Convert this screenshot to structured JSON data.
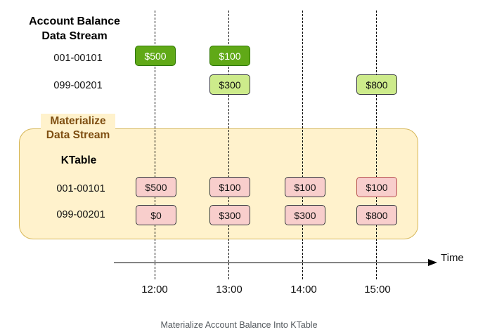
{
  "stream": {
    "title": "Account Balance Data Stream",
    "accounts": [
      "001-00101",
      "099-00201"
    ]
  },
  "materialize_label": "Materialize Data Stream",
  "ktable": {
    "title": "KTable",
    "accounts": [
      "001-00101",
      "099-00201"
    ]
  },
  "events": {
    "acct1_1200": "$500",
    "acct1_1300": "$100",
    "acct2_1300": "$300",
    "acct2_1500": "$800"
  },
  "table_values": {
    "acct1": [
      "$500",
      "$100",
      "$100",
      "$100"
    ],
    "acct2": [
      "$0",
      "$300",
      "$300",
      "$800"
    ]
  },
  "time_axis": {
    "label": "Time",
    "ticks": [
      "12:00",
      "13:00",
      "14:00",
      "15:00"
    ]
  },
  "caption": "Materialize Account Balance Into KTable",
  "colors": {
    "event_dark": "#60a917",
    "event_light": "#cdeb8b",
    "table_cell": "#f8cecc",
    "panel_fill": "#fff2cc",
    "panel_border": "#d6b656",
    "materialize_text": "#7f4f12"
  }
}
